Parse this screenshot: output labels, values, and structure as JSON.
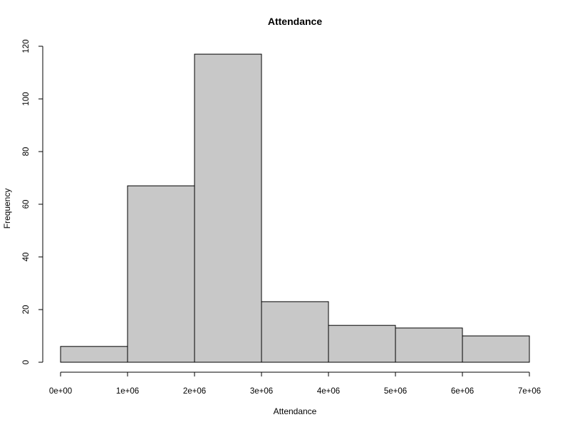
{
  "chart_data": {
    "type": "bar",
    "title": "Attendance",
    "xlabel": "Attendance",
    "ylabel": "Frequency",
    "bins": [
      {
        "start": 0,
        "end": 1000000,
        "count": 6
      },
      {
        "start": 1000000,
        "end": 2000000,
        "count": 67
      },
      {
        "start": 2000000,
        "end": 3000000,
        "count": 117
      },
      {
        "start": 3000000,
        "end": 4000000,
        "count": 23
      },
      {
        "start": 4000000,
        "end": 5000000,
        "count": 14
      },
      {
        "start": 5000000,
        "end": 6000000,
        "count": 13
      },
      {
        "start": 6000000,
        "end": 7000000,
        "count": 10
      }
    ],
    "xlim": [
      0,
      7000000
    ],
    "ylim": [
      0,
      120
    ],
    "x_ticks": [
      {
        "value": 0,
        "label": "0e+00"
      },
      {
        "value": 1000000,
        "label": "1e+06"
      },
      {
        "value": 2000000,
        "label": "2e+06"
      },
      {
        "value": 3000000,
        "label": "3e+06"
      },
      {
        "value": 4000000,
        "label": "4e+06"
      },
      {
        "value": 5000000,
        "label": "5e+06"
      },
      {
        "value": 6000000,
        "label": "6e+06"
      },
      {
        "value": 7000000,
        "label": "7e+06"
      }
    ],
    "y_ticks": [
      {
        "value": 0,
        "label": "0"
      },
      {
        "value": 20,
        "label": "20"
      },
      {
        "value": 40,
        "label": "40"
      },
      {
        "value": 60,
        "label": "60"
      },
      {
        "value": 80,
        "label": "80"
      },
      {
        "value": 100,
        "label": "100"
      },
      {
        "value": 120,
        "label": "120"
      }
    ],
    "bar_color": "#c8c8c8",
    "edge_color": "#000000",
    "grid": false,
    "legend": "none"
  }
}
